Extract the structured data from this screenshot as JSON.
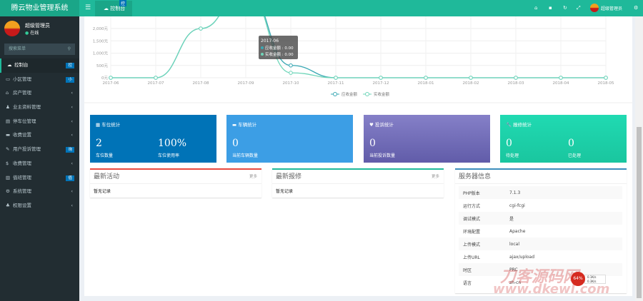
{
  "app": {
    "title": "腾云物业管理系统"
  },
  "header": {
    "toggle_icon": "bars-icon",
    "tab_label": "控制台",
    "tab_badge": "控",
    "icons": [
      "home-icon",
      "trash-icon",
      "refresh-icon",
      "fullscreen-icon"
    ],
    "user_name": "超级管理员",
    "settings_icon": "gears-icon"
  },
  "sidebar": {
    "user_name": "超级管理员",
    "status": "在线",
    "search_placeholder": "搜索菜单",
    "items": [
      {
        "label": "控制台",
        "icon": "dashboard-icon",
        "badge": "控",
        "active": true
      },
      {
        "label": "小区管理",
        "icon": "desktop-icon",
        "badge": "小"
      },
      {
        "label": "房产管理",
        "icon": "home-icon",
        "arrow": "‹"
      },
      {
        "label": "业主资料管理",
        "icon": "user-icon",
        "arrow": "‹"
      },
      {
        "label": "停车位管理",
        "icon": "car-icon",
        "arrow": "‹"
      },
      {
        "label": "收费设置",
        "icon": "list-icon",
        "arrow": "‹"
      },
      {
        "label": "用户投诉管理",
        "icon": "bullhorn-icon",
        "badge": "询"
      },
      {
        "label": "收费管理",
        "icon": "dollar-icon",
        "arrow": "‹"
      },
      {
        "label": "值班管理",
        "icon": "calendar-icon",
        "badge": "值"
      },
      {
        "label": "系统管理",
        "icon": "cogs-icon",
        "arrow": "‹"
      },
      {
        "label": "权限设置",
        "icon": "group-icon",
        "arrow": "‹"
      }
    ]
  },
  "chart_data": {
    "type": "line",
    "categories": [
      "2017-06",
      "2017-07",
      "2017-08",
      "2017-09",
      "2017-10",
      "2017-11",
      "2017-12",
      "2018-01",
      "2018-02",
      "2018-03",
      "2018-04",
      "2018-05"
    ],
    "series": [
      {
        "name": "应收金额",
        "values": [
          0,
          0,
          2000,
          3600,
          500,
          0,
          0,
          0,
          0,
          0,
          0,
          0
        ],
        "color": "#3aa8b4"
      },
      {
        "name": "实收金额",
        "values": [
          0,
          0,
          2000,
          3600,
          200,
          0,
          0,
          0,
          0,
          0,
          0,
          0
        ],
        "color": "#6fd6b9"
      }
    ],
    "yticks": [
      "0元",
      "500元",
      "1,000元",
      "1,500元",
      "2,000元"
    ],
    "ylim": [
      0,
      3600
    ],
    "grid": true,
    "legend": "bottom",
    "tooltip": {
      "title": "2017-06",
      "rows": [
        "应收金额 : 0.00",
        "实收金额 : 0.00"
      ]
    }
  },
  "cards": [
    {
      "title": "车位统计",
      "icon": "table-icon",
      "color": "#0073b7",
      "stats": [
        {
          "value": "2",
          "label": "车位数量"
        },
        {
          "value": "100%",
          "label": "车位使用率"
        }
      ]
    },
    {
      "title": "车辆统计",
      "icon": "truck-icon",
      "color": "#3c9ee5",
      "stats": [
        {
          "value": "0",
          "label": "当前车辆数量"
        }
      ]
    },
    {
      "title": "投诉统计",
      "icon": "heart-icon",
      "color": "#6f69b6",
      "stats": [
        {
          "value": "0",
          "label": "当前投诉数量"
        }
      ]
    },
    {
      "title": "报修统计",
      "icon": "wrench-icon",
      "color": "#1fcfa8",
      "stats": [
        {
          "value": "0",
          "label": "待处理"
        },
        {
          "value": "0",
          "label": "已处理"
        }
      ]
    }
  ],
  "panels": {
    "activity": {
      "title": "最新活动",
      "more": "更多",
      "empty": "暂无记录"
    },
    "repair": {
      "title": "最新报修",
      "more": "更多",
      "empty": "暂无记录"
    },
    "server": {
      "title": "服务器信息",
      "rows": [
        [
          "PHP版本",
          "7.1.3"
        ],
        [
          "运行方式",
          "cgi-fcgi"
        ],
        [
          "调试模式",
          "是"
        ],
        [
          "环境配置",
          "Apache"
        ],
        [
          "上传模式",
          "local"
        ],
        [
          "上传URL",
          "ajax/upload"
        ],
        [
          "时区",
          "PRC"
        ],
        [
          "语言",
          "zh-cn"
        ]
      ]
    }
  },
  "watermark": {
    "text": "刀客源码网",
    "url": "www.dkewl.com"
  },
  "speed_widget": {
    "percent": "64%",
    "up": "0.1K/s",
    "down": "0.3K/s"
  }
}
